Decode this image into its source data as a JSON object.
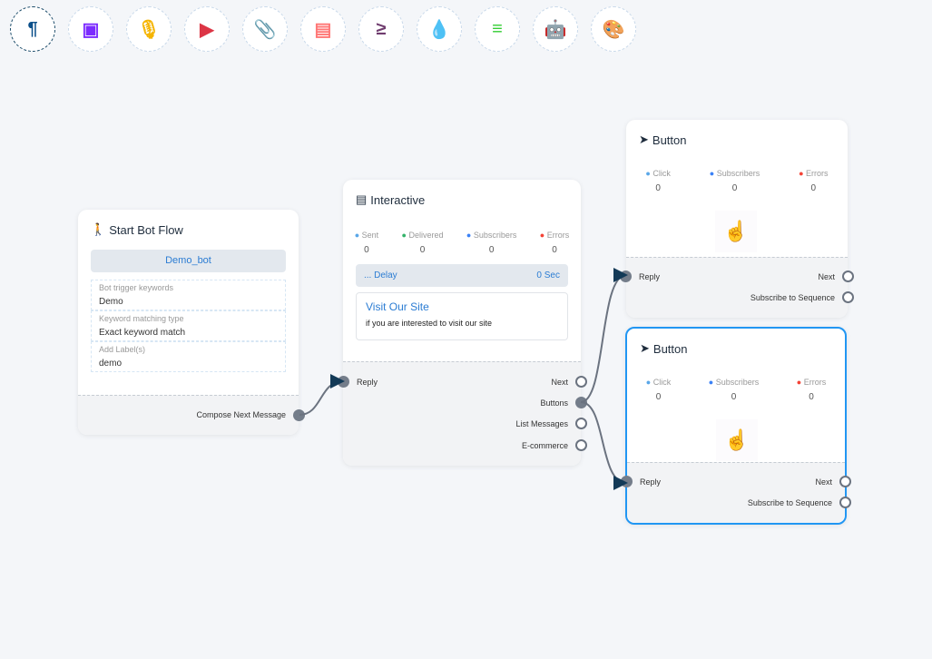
{
  "toolbar": {
    "items": [
      {
        "icon": "paragraph-icon",
        "glyph": "¶",
        "color": "#0b4f8a"
      },
      {
        "icon": "image-icon",
        "glyph": "▣",
        "color": "#7c2bff"
      },
      {
        "icon": "microphone-icon",
        "glyph": "🎙",
        "color": "#f5b400"
      },
      {
        "icon": "youtube-icon",
        "glyph": "▶",
        "color": "#dc3545"
      },
      {
        "icon": "paperclip-icon",
        "glyph": "📎",
        "color": "#28a745"
      },
      {
        "icon": "newspaper-icon",
        "glyph": "▤",
        "color": "#ff7675"
      },
      {
        "icon": "greater-equal-icon",
        "glyph": "≥",
        "color": "#6f3c6e"
      },
      {
        "icon": "drop-icon",
        "glyph": "💧",
        "color": "#c8102e"
      },
      {
        "icon": "stack-overflow-icon",
        "glyph": "≡",
        "color": "#32cd32"
      },
      {
        "icon": "robot-icon",
        "glyph": "🤖",
        "color": "#0a14e0"
      },
      {
        "icon": "palette-icon",
        "glyph": "🎨",
        "color": "#16c12b"
      }
    ]
  },
  "start": {
    "title": "Start Bot Flow",
    "bot": "Demo_bot",
    "fields": [
      {
        "label": "Bot trigger keywords",
        "value": "Demo"
      },
      {
        "label": "Keyword matching type",
        "value": "Exact keyword match"
      },
      {
        "label": "Add Label(s)",
        "value": "demo"
      }
    ],
    "output": "Compose Next Message"
  },
  "interactive": {
    "title": "Interactive",
    "stats": [
      {
        "label": "Sent",
        "value": "0",
        "icon": "paper-plane-icon",
        "color": "#5aa7e8"
      },
      {
        "label": "Delivered",
        "value": "0",
        "icon": "check-circle-icon",
        "color": "#34b36a"
      },
      {
        "label": "Subscribers",
        "value": "0",
        "icon": "user-circle-icon",
        "color": "#3b82f6"
      },
      {
        "label": "Errors",
        "value": "0",
        "icon": "bug-icon",
        "color": "#f44336"
      }
    ],
    "delay_label": "... Delay",
    "delay_value": "0 Sec",
    "card_title": "Visit Our Site",
    "card_text": "if you are interested to visit our site",
    "input": "Reply",
    "outputs": [
      "Next",
      "Buttons",
      "List Messages",
      "E-commerce"
    ]
  },
  "buttons": [
    {
      "title": "Button",
      "stats": [
        {
          "label": "Click",
          "value": "0"
        },
        {
          "label": "Subscribers",
          "value": "0"
        },
        {
          "label": "Errors",
          "value": "0"
        }
      ],
      "input": "Reply",
      "outputs": [
        "Next",
        "Subscribe to Sequence"
      ]
    },
    {
      "title": "Button",
      "stats": [
        {
          "label": "Click",
          "value": "0"
        },
        {
          "label": "Subscribers",
          "value": "0"
        },
        {
          "label": "Errors",
          "value": "0"
        }
      ],
      "input": "Reply",
      "outputs": [
        "Next",
        "Subscribe to Sequence"
      ]
    }
  ]
}
